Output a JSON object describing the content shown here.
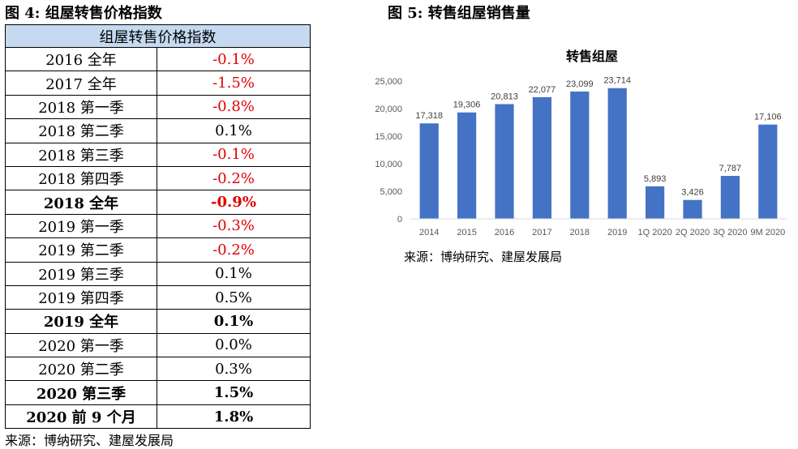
{
  "figure4": {
    "title": "图 4: 组屋转售价格指数",
    "table_header": "组屋转售价格指数",
    "rows": [
      {
        "period": "2016 全年",
        "value": "-0.1%",
        "neg": true,
        "bold": false
      },
      {
        "period": "2017 全年",
        "value": "-1.5%",
        "neg": true,
        "bold": false
      },
      {
        "period": "2018 第一季",
        "value": "-0.8%",
        "neg": true,
        "bold": false
      },
      {
        "period": "2018 第二季",
        "value": "0.1%",
        "neg": false,
        "bold": false
      },
      {
        "period": "2018 第三季",
        "value": "-0.1%",
        "neg": true,
        "bold": false
      },
      {
        "period": "2018 第四季",
        "value": "-0.2%",
        "neg": true,
        "bold": false
      },
      {
        "period": "2018 全年",
        "value": "-0.9%",
        "neg": true,
        "bold": true
      },
      {
        "period": "2019 第一季",
        "value": "-0.3%",
        "neg": true,
        "bold": false
      },
      {
        "period": "2019 第二季",
        "value": "-0.2%",
        "neg": true,
        "bold": false
      },
      {
        "period": "2019 第三季",
        "value": "0.1%",
        "neg": false,
        "bold": false
      },
      {
        "period": "2019 第四季",
        "value": "0.5%",
        "neg": false,
        "bold": false
      },
      {
        "period": "2019 全年",
        "value": "0.1%",
        "neg": false,
        "bold": true
      },
      {
        "period": "2020 第一季",
        "value": "0.0%",
        "neg": false,
        "bold": false
      },
      {
        "period": "2020 第二季",
        "value": "0.3%",
        "neg": false,
        "bold": false
      },
      {
        "period": "2020 第三季",
        "value": "1.5%",
        "neg": false,
        "bold": true
      },
      {
        "period": "2020 前 9 个月",
        "value": "1.8%",
        "neg": false,
        "bold": true
      }
    ],
    "source": "来源：博纳研究、建屋发展局"
  },
  "figure5": {
    "title": "图 5: 转售组屋销售量",
    "source": "来源：博纳研究、建屋发展局"
  },
  "colors": {
    "bar": "#4472c4",
    "negative": "#e00000",
    "header_bg": "#c5d9f1",
    "axis_text": "#595959"
  },
  "chart_data": {
    "type": "bar",
    "title": "转售组屋",
    "categories": [
      "2014",
      "2015",
      "2016",
      "2017",
      "2018",
      "2019",
      "1Q 2020",
      "2Q 2020",
      "3Q 2020",
      "9M 2020"
    ],
    "values": [
      17318,
      19306,
      20813,
      22077,
      23099,
      23714,
      5893,
      3426,
      7787,
      17106
    ],
    "data_labels": [
      "17,318",
      "19,306",
      "20,813",
      "22,077",
      "23,099",
      "23,714",
      "5,893",
      "3,426",
      "7,787",
      "17,106"
    ],
    "ylim": [
      0,
      25000
    ],
    "yticks": [
      0,
      5000,
      10000,
      15000,
      20000,
      25000
    ],
    "ytick_labels": [
      "0",
      "5,000",
      "10,000",
      "15,000",
      "20,000",
      "25,000"
    ],
    "xlabel": "",
    "ylabel": "",
    "grid": false,
    "legend": "none"
  }
}
